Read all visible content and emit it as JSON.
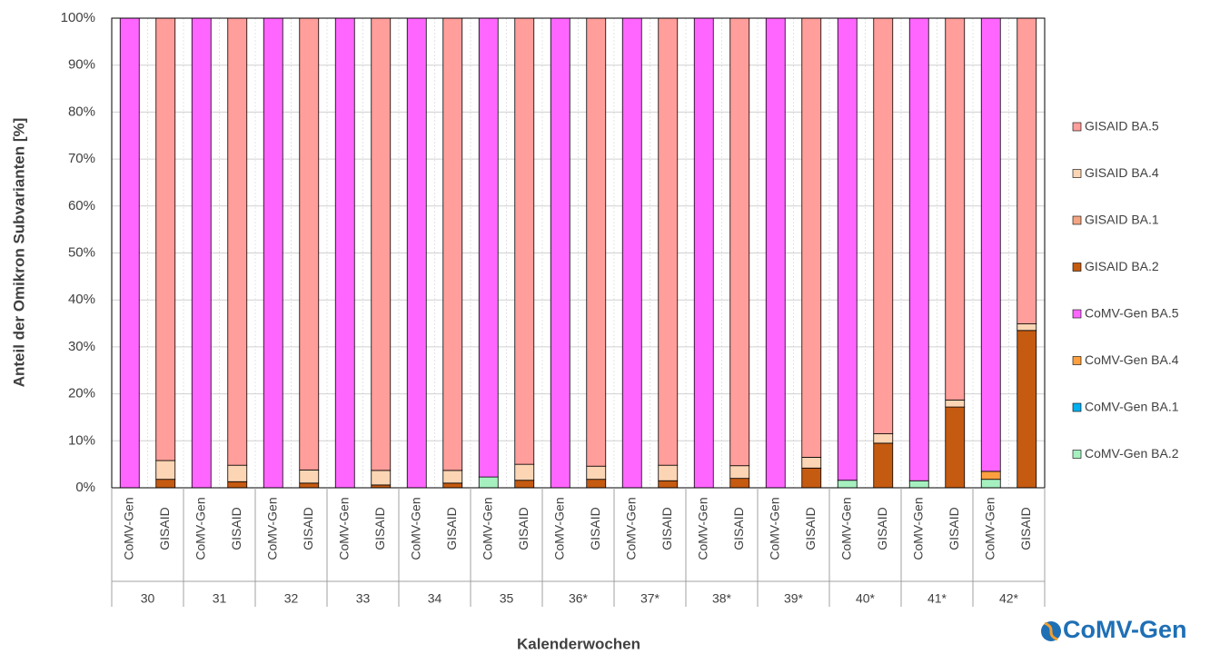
{
  "chart_data": {
    "type": "stacked-bar",
    "y_label": "Anteil der Omikron Subvarianten [%]",
    "x_label": "Kalenderwochen",
    "logo": "CoMV-Gen",
    "categories": [
      "CoMV-Gen",
      "GISAID",
      "CoMV-Gen",
      "GISAID",
      "CoMV-Gen",
      "GISAID",
      "CoMV-Gen",
      "GISAID",
      "CoMV-Gen",
      "GISAID",
      "CoMV-Gen",
      "GISAID",
      "CoMV-Gen",
      "GISAID",
      "CoMV-Gen",
      "GISAID",
      "CoMV-Gen",
      "GISAID",
      "CoMV-Gen",
      "GISAID",
      "CoMV-Gen",
      "GISAID",
      "CoMV-Gen",
      "GISAID",
      "CoMV-Gen",
      "GISAID"
    ],
    "groups": [
      "30",
      "31",
      "32",
      "33",
      "34",
      "35",
      "36*",
      "37*",
      "38*",
      "39*",
      "40*",
      "41*",
      "42*"
    ],
    "ylim": [
      0,
      100
    ],
    "yticks": [
      {
        "value": 0,
        "label": "0%"
      },
      {
        "value": 10,
        "label": "10%"
      },
      {
        "value": 20,
        "label": "20%"
      },
      {
        "value": 30,
        "label": "30%"
      },
      {
        "value": 40,
        "label": "40%"
      },
      {
        "value": 50,
        "label": "50%"
      },
      {
        "value": 60,
        "label": "60%"
      },
      {
        "value": 70,
        "label": "70%"
      },
      {
        "value": 80,
        "label": "80%"
      },
      {
        "value": 90,
        "label": "90%"
      },
      {
        "value": 100,
        "label": "100%"
      }
    ],
    "grid": true,
    "legend": "right",
    "series": [
      {
        "name": "CoMV-Gen BA.2",
        "color": "#a6f0c0",
        "values": [
          0,
          null,
          0,
          null,
          0,
          null,
          0,
          null,
          0,
          null,
          2.3,
          null,
          0,
          null,
          0,
          null,
          0,
          null,
          0,
          null,
          1.6,
          null,
          1.5,
          null,
          1.8,
          null
        ]
      },
      {
        "name": "CoMV-Gen BA.1",
        "color": "#00b0f0",
        "values": [
          0,
          null,
          0,
          null,
          0,
          null,
          0,
          null,
          0,
          null,
          0,
          null,
          0,
          null,
          0,
          null,
          0,
          null,
          0,
          null,
          0,
          null,
          0,
          null,
          0,
          null
        ]
      },
      {
        "name": "CoMV-Gen BA.4",
        "color": "#ffa040",
        "values": [
          0,
          null,
          0,
          null,
          0,
          null,
          0,
          null,
          0,
          null,
          0,
          null,
          0,
          null,
          0,
          null,
          0,
          null,
          0,
          null,
          0,
          null,
          0,
          null,
          1.7,
          null
        ]
      },
      {
        "name": "CoMV-Gen BA.5",
        "color": "#ff66ff",
        "values": [
          100,
          null,
          100,
          null,
          100,
          null,
          100,
          null,
          100,
          null,
          97.7,
          null,
          100,
          null,
          100,
          null,
          100,
          null,
          100,
          null,
          98.4,
          null,
          98.5,
          null,
          96.5,
          null
        ]
      },
      {
        "name": "GISAID BA.2",
        "color": "#c55a11",
        "values": [
          null,
          1.8,
          null,
          1.3,
          null,
          1.0,
          null,
          0.6,
          null,
          1.0,
          null,
          1.6,
          null,
          1.8,
          null,
          1.5,
          null,
          2.0,
          null,
          4.2,
          null,
          9.5,
          null,
          17.2,
          null,
          33.5
        ]
      },
      {
        "name": "GISAID BA.1",
        "color": "#f4a582",
        "values": [
          null,
          0,
          null,
          0,
          null,
          0,
          null,
          0,
          null,
          0,
          null,
          0,
          null,
          0,
          null,
          0,
          null,
          0,
          null,
          0,
          null,
          0,
          null,
          0,
          null,
          0
        ]
      },
      {
        "name": "GISAID BA.4",
        "color": "#fcd5b4",
        "values": [
          null,
          4.0,
          null,
          3.5,
          null,
          2.8,
          null,
          3.1,
          null,
          2.7,
          null,
          3.4,
          null,
          2.8,
          null,
          3.3,
          null,
          2.7,
          null,
          2.3,
          null,
          2.0,
          null,
          1.5,
          null,
          1.4
        ]
      },
      {
        "name": "GISAID BA.5",
        "color": "#ff9e9a",
        "values": [
          null,
          94.2,
          null,
          95.2,
          null,
          96.2,
          null,
          96.3,
          null,
          96.3,
          null,
          95.0,
          null,
          95.4,
          null,
          95.2,
          null,
          95.3,
          null,
          93.5,
          null,
          88.5,
          null,
          81.3,
          null,
          65.1
        ]
      }
    ]
  }
}
